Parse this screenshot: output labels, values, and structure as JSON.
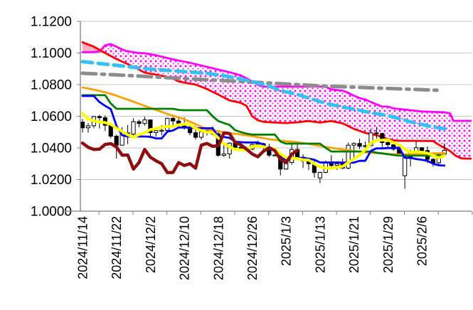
{
  "chart_data": {
    "type": "candlestick",
    "title": "",
    "description": "Daily exchange-rate candlestick chart with Ichimoku cloud, trend lines and moving averages",
    "y_axis": {
      "min": 1.0,
      "max": 1.12,
      "tick_step": 0.02,
      "tick_labels": [
        "1.1200",
        "1.1000",
        "1.0800",
        "1.0600",
        "1.0400",
        "1.0200",
        "1.0000"
      ],
      "grid": true
    },
    "x_axis": {
      "tick_labels": [
        {
          "index": 0,
          "label": "2024/11/14"
        },
        {
          "index": 6,
          "label": "2024/11/22"
        },
        {
          "index": 12,
          "label": "2024/12/2"
        },
        {
          "index": 18,
          "label": "2024/12/10"
        },
        {
          "index": 24,
          "label": "2024/12/18"
        },
        {
          "index": 30,
          "label": "2024/12/26"
        },
        {
          "index": 36,
          "label": "2025/1/3"
        },
        {
          "index": 42,
          "label": "2025/1/13"
        },
        {
          "index": 48,
          "label": "2025/1/21"
        },
        {
          "index": 54,
          "label": "2025/1/29"
        },
        {
          "index": 60,
          "label": "2025/2/6"
        }
      ]
    },
    "candles": {
      "dates": [
        "2024/11/14",
        "2024/11/15",
        "2024/11/18",
        "2024/11/19",
        "2024/11/20",
        "2024/11/21",
        "2024/11/22",
        "2024/11/25",
        "2024/11/26",
        "2024/11/27",
        "2024/11/28",
        "2024/11/29",
        "2024/12/2",
        "2024/12/3",
        "2024/12/4",
        "2024/12/5",
        "2024/12/6",
        "2024/12/9",
        "2024/12/10",
        "2024/12/11",
        "2024/12/12",
        "2024/12/13",
        "2024/12/16",
        "2024/12/17",
        "2024/12/18",
        "2024/12/19",
        "2024/12/20",
        "2024/12/23",
        "2024/12/24",
        "2024/12/25",
        "2024/12/26",
        "2024/12/27",
        "2024/12/30",
        "2024/12/31",
        "2025/1/1",
        "2025/1/2",
        "2025/1/3",
        "2025/1/6",
        "2025/1/7",
        "2025/1/8",
        "2025/1/9",
        "2025/1/10",
        "2025/1/13",
        "2025/1/14",
        "2025/1/15",
        "2025/1/16",
        "2025/1/17",
        "2025/1/20",
        "2025/1/21",
        "2025/1/22",
        "2025/1/23",
        "2025/1/24",
        "2025/1/27",
        "2025/1/28",
        "2025/1/29",
        "2025/1/30",
        "2025/1/31",
        "2025/2/3",
        "2025/2/4",
        "2025/2/5",
        "2025/2/6",
        "2025/2/7",
        "2025/2/10",
        "2025/2/11",
        "2025/2/12"
      ],
      "open": [
        1.0563,
        1.0527,
        1.054,
        1.0598,
        1.0591,
        1.0543,
        1.0474,
        1.0417,
        1.0495,
        1.0487,
        1.0566,
        1.0554,
        1.0577,
        1.0497,
        1.0509,
        1.0511,
        1.0587,
        1.057,
        1.0555,
        1.0527,
        1.0496,
        1.0467,
        1.0501,
        1.0511,
        1.0489,
        1.0353,
        1.0362,
        1.043,
        1.0404,
        1.039,
        1.0392,
        1.0422,
        1.0427,
        1.0406,
        1.0354,
        1.0355,
        1.0266,
        1.0308,
        1.039,
        1.0341,
        1.0318,
        1.03,
        1.021,
        1.0245,
        1.0307,
        1.0289,
        1.03,
        1.0272,
        1.0417,
        1.0428,
        1.041,
        1.0414,
        1.0495,
        1.0491,
        1.0434,
        1.042,
        1.0392,
        1.0224,
        1.0344,
        1.0379,
        1.0401,
        1.0383,
        1.0328,
        1.0306,
        1.036
      ],
      "high": [
        1.0583,
        1.0557,
        1.0601,
        1.061,
        1.0606,
        1.0555,
        1.0484,
        1.053,
        1.0545,
        1.0587,
        1.0578,
        1.0597,
        1.0578,
        1.0531,
        1.0544,
        1.059,
        1.0596,
        1.0594,
        1.0594,
        1.0545,
        1.0539,
        1.0521,
        1.0525,
        1.0535,
        1.0512,
        1.0424,
        1.0435,
        1.044,
        1.041,
        1.0398,
        1.0428,
        1.0445,
        1.0433,
        1.0426,
        1.036,
        1.0374,
        1.0322,
        1.0437,
        1.0435,
        1.036,
        1.0321,
        1.0322,
        1.025,
        1.032,
        1.0354,
        1.0313,
        1.0332,
        1.0434,
        1.0436,
        1.0457,
        1.044,
        1.0521,
        1.0533,
        1.0495,
        1.0453,
        1.0441,
        1.0418,
        1.035,
        1.0388,
        1.0442,
        1.0405,
        1.0409,
        1.0335,
        1.0368,
        1.0428
      ],
      "low": [
        1.0497,
        1.0496,
        1.0524,
        1.0522,
        1.0507,
        1.0461,
        1.0333,
        1.0415,
        1.0424,
        1.0461,
        1.053,
        1.0541,
        1.0461,
        1.0471,
        1.048,
        1.0503,
        1.0542,
        1.0536,
        1.0516,
        1.048,
        1.0453,
        1.0452,
        1.0478,
        1.048,
        1.0344,
        1.0343,
        1.0332,
        1.0385,
        1.038,
        1.0385,
        1.0386,
        1.0415,
        1.0374,
        1.0342,
        1.0348,
        1.0226,
        1.0262,
        1.0294,
        1.0336,
        1.0273,
        1.026,
        1.0213,
        1.0178,
        1.024,
        1.028,
        1.0261,
        1.0266,
        1.0265,
        1.0342,
        1.0392,
        1.0371,
        1.0413,
        1.0458,
        1.0405,
        1.0397,
        1.0381,
        1.036,
        1.0141,
        1.0282,
        1.0375,
        1.0357,
        1.0304,
        1.0281,
        1.029,
        1.0357
      ],
      "close": [
        1.0527,
        1.054,
        1.0598,
        1.0591,
        1.0543,
        1.0474,
        1.0417,
        1.0495,
        1.0487,
        1.0566,
        1.0554,
        1.0577,
        1.0497,
        1.0509,
        1.0511,
        1.0587,
        1.057,
        1.0555,
        1.0527,
        1.0496,
        1.0467,
        1.0501,
        1.0511,
        1.0489,
        1.0353,
        1.0362,
        1.043,
        1.0404,
        1.039,
        1.0392,
        1.0422,
        1.0427,
        1.0406,
        1.0354,
        1.0355,
        1.0266,
        1.0308,
        1.039,
        1.0341,
        1.0318,
        1.03,
        1.0244,
        1.0245,
        1.0307,
        1.0289,
        1.03,
        1.0272,
        1.0417,
        1.0428,
        1.041,
        1.0414,
        1.0495,
        1.0491,
        1.0434,
        1.042,
        1.0392,
        1.0362,
        1.0344,
        1.0379,
        1.0401,
        1.0383,
        1.0328,
        1.0306,
        1.036,
        1.0384
      ],
      "up_fill": "#ffffff",
      "down_fill": "#000000",
      "outline": "#000000"
    },
    "cloud": {
      "upper_series": "senkou-span-a",
      "lower_series": "senkou-span-b",
      "dot_color": "#FF00FF",
      "dot_bg": "#ffffff",
      "solid_fill_when_b_above_a": "#FFAFC5"
    },
    "series": [
      {
        "name": "senkou-span-a",
        "type": "line",
        "color": "#FF00FF",
        "width": 2.8,
        "d": [
          0,
          2,
          3,
          4,
          5,
          6,
          7,
          8,
          10,
          11,
          13,
          15,
          17,
          19,
          21,
          24,
          26,
          28,
          29,
          30,
          31,
          32,
          43,
          44,
          46,
          47,
          48,
          49,
          50,
          51,
          52,
          53,
          54,
          55,
          57,
          58,
          60,
          64,
          65,
          65.6,
          69
        ],
        "v": [
          1.1005,
          1.1005,
          1.101,
          1.1048,
          1.1056,
          1.104,
          1.1022,
          1.101,
          1.1,
          1.0998,
          1.0985,
          1.0968,
          1.0952,
          1.0938,
          1.0921,
          1.0895,
          1.0878,
          1.0858,
          1.084,
          1.082,
          1.08,
          1.0787,
          1.0787,
          1.077,
          1.0762,
          1.0748,
          1.073,
          1.0715,
          1.0706,
          1.069,
          1.0675,
          1.0661,
          1.0661,
          1.065,
          1.0642,
          1.0638,
          1.063,
          1.0625,
          1.0618,
          1.0571,
          1.0571
        ]
      },
      {
        "name": "senkou-span-b",
        "type": "line",
        "color": "#FF0000",
        "width": 2.8,
        "d": [
          0,
          2,
          4,
          6,
          8,
          10,
          11,
          14,
          16,
          17,
          20,
          22,
          24,
          26,
          28,
          29,
          30,
          31,
          32,
          34,
          36,
          38,
          40,
          42,
          44,
          46,
          48,
          50,
          52,
          54,
          55,
          56,
          62,
          63,
          65,
          66,
          67,
          68,
          69
        ],
        "v": [
          1.1068,
          1.104,
          1.1,
          1.0962,
          1.093,
          1.0895,
          1.0876,
          1.0856,
          1.0838,
          1.082,
          1.08,
          1.0772,
          1.0737,
          1.07,
          1.0685,
          1.0665,
          1.06,
          1.0575,
          1.0565,
          1.056,
          1.0557,
          1.0562,
          1.057,
          1.056,
          1.057,
          1.0555,
          1.052,
          1.0495,
          1.048,
          1.0455,
          1.0448,
          1.0445,
          1.0443,
          1.042,
          1.038,
          1.035,
          1.0334,
          1.0332,
          1.0332
        ]
      },
      {
        "name": "trendline-gray-dashdot",
        "type": "line",
        "color": "#8C8C8C",
        "width": 5,
        "dash": "19 8 4 8",
        "d": [
          0,
          8,
          16,
          22,
          28,
          33,
          38,
          43,
          48,
          53,
          58,
          63
        ],
        "v": [
          1.0872,
          1.0858,
          1.0842,
          1.0831,
          1.082,
          1.081,
          1.08,
          1.079,
          1.0784,
          1.0777,
          1.0771,
          1.0764
        ]
      },
      {
        "name": "trendline-cyan-dashed",
        "type": "line",
        "color": "#35C2F2",
        "width": 5,
        "dash": "14 8",
        "d": [
          0,
          6,
          12,
          18,
          22,
          26,
          30,
          33,
          35,
          38,
          40,
          43,
          46,
          48,
          51,
          54,
          58,
          62,
          65
        ],
        "v": [
          1.0945,
          1.0922,
          1.0898,
          1.0882,
          1.0872,
          1.085,
          1.082,
          1.079,
          1.0762,
          1.0738,
          1.0715,
          1.0682,
          1.0658,
          1.0645,
          1.0622,
          1.0605,
          1.0565,
          1.0532,
          1.0515
        ]
      },
      {
        "name": "candlesticks",
        "type": "candles"
      },
      {
        "name": "ma-orange",
        "type": "line",
        "color": "#FFA000",
        "width": 2.8,
        "d": [
          0,
          2,
          4,
          6,
          9,
          11,
          13,
          15,
          18,
          20,
          22,
          24,
          26,
          29,
          31,
          33,
          35,
          38,
          40,
          42,
          44,
          46,
          48,
          50,
          52,
          54,
          56,
          58,
          60,
          62,
          64
        ],
        "v": [
          1.0782,
          1.0768,
          1.0752,
          1.073,
          1.0692,
          1.0665,
          1.064,
          1.0615,
          1.0581,
          1.055,
          1.0519,
          1.0505,
          1.0494,
          1.048,
          1.0468,
          1.0455,
          1.0446,
          1.0436,
          1.0425,
          1.0412,
          1.04,
          1.039,
          1.038,
          1.0372,
          1.0367,
          1.0362,
          1.0358,
          1.036,
          1.0363,
          1.0365,
          1.0367
        ]
      },
      {
        "name": "kijun-green",
        "type": "line",
        "color": "#008000",
        "width": 2.8,
        "d": [
          0,
          4,
          5,
          6,
          16,
          17,
          18,
          22,
          23,
          24,
          25,
          26,
          27,
          28,
          29,
          30,
          34,
          35,
          36,
          42,
          43,
          44,
          50,
          51,
          52,
          53,
          54,
          55,
          56,
          64
        ],
        "v": [
          1.0733,
          1.0733,
          1.068,
          1.0647,
          1.0647,
          1.064,
          1.0638,
          1.0638,
          1.06,
          1.057,
          1.0557,
          1.0545,
          1.0512,
          1.05,
          1.049,
          1.0484,
          1.0484,
          1.044,
          1.0427,
          1.0427,
          1.04,
          1.0377,
          1.0377,
          1.0377,
          1.037,
          1.0365,
          1.036,
          1.0355,
          1.0351,
          1.0351
        ]
      },
      {
        "name": "tenkan-blue",
        "type": "line",
        "color": "#0000FF",
        "width": 2.8,
        "values": [
          1.0728,
          1.0728,
          1.0728,
          1.069,
          1.0666,
          1.0645,
          1.054,
          1.048,
          1.0472,
          1.0472,
          1.0472,
          1.0472,
          1.047,
          1.046,
          1.046,
          1.0503,
          1.051,
          1.0529,
          1.0529,
          1.0529,
          1.0525,
          1.0524,
          1.0524,
          1.0524,
          1.047,
          1.0469,
          1.0463,
          1.0439,
          1.0436,
          1.0434,
          1.0434,
          1.0434,
          1.0422,
          1.0389,
          1.0389,
          1.0336,
          1.0327,
          1.0332,
          1.0336,
          1.0336,
          1.0332,
          1.0325,
          1.0308,
          1.0308,
          1.0308,
          1.0308,
          1.0307,
          1.0306,
          1.0307,
          1.0318,
          1.0318,
          1.0381,
          1.0397,
          1.0397,
          1.0399,
          1.0399,
          1.0402,
          1.0337,
          1.0337,
          1.033,
          1.0325,
          1.0318,
          1.03,
          1.029,
          1.0288
        ]
      },
      {
        "name": "ma-yellow",
        "type": "line",
        "color": "#FFFF00",
        "width": 4,
        "values": [
          1.0618,
          1.0582,
          1.057,
          1.0564,
          1.056,
          1.0549,
          1.0525,
          1.0504,
          1.0483,
          1.0468,
          1.0484,
          1.0496,
          1.0516,
          1.0521,
          1.053,
          1.0536,
          1.0535,
          1.0546,
          1.055,
          1.0547,
          1.0523,
          1.0509,
          1.05,
          1.0497,
          1.0463,
          1.0426,
          1.0407,
          1.039,
          1.0388,
          1.0388,
          1.0408,
          1.0413,
          1.0407,
          1.04,
          1.0393,
          1.0362,
          1.0338,
          1.0335,
          1.0332,
          1.0325,
          1.0323,
          1.0299,
          1.0281,
          1.0272,
          1.0271,
          1.0277,
          1.0283,
          1.0308,
          1.033,
          1.0354,
          1.0388,
          1.0433,
          1.0448,
          1.0449,
          1.0451,
          1.0432,
          1.042,
          1.039,
          1.0372,
          1.0376,
          1.0372,
          1.0367,
          1.0352,
          1.0336,
          1.0352
        ]
      },
      {
        "name": "chikou-lagging",
        "type": "chikou",
        "color": "#8D1010",
        "width": 4.5,
        "shift": 26
      }
    ],
    "colors": {
      "grid": "#C6C6C6",
      "axis": "#7F7F7F",
      "label": "#000000",
      "background": "#ffffff"
    }
  }
}
